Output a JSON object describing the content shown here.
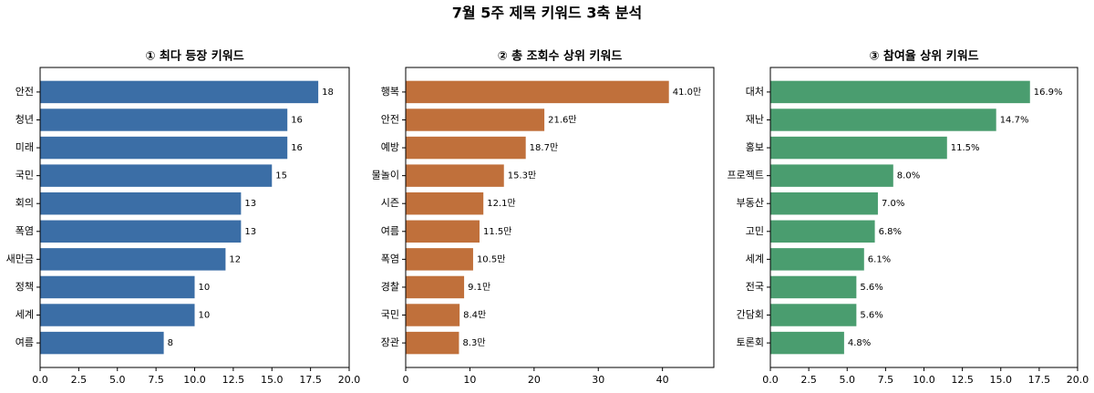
{
  "title": "7월 5주 제목 키워드 3축 분석",
  "chart_data": [
    {
      "type": "barh",
      "title": "① 최다 등장 키워드",
      "color": "#3b6ea6",
      "categories": [
        "안전",
        "청년",
        "미래",
        "국민",
        "회의",
        "폭염",
        "새만금",
        "정책",
        "세계",
        "여름"
      ],
      "values": [
        18,
        16,
        16,
        15,
        13,
        13,
        12,
        10,
        10,
        8
      ],
      "xlim": [
        0,
        20
      ],
      "xticks": [
        {
          "value": 0,
          "label": "0.0"
        },
        {
          "value": 2.5,
          "label": "2.5"
        },
        {
          "value": 5,
          "label": "5.0"
        },
        {
          "value": 7.5,
          "label": "7.5"
        },
        {
          "value": 10,
          "label": "10.0"
        },
        {
          "value": 12.5,
          "label": "12.5"
        },
        {
          "value": 15,
          "label": "15.0"
        },
        {
          "value": 17.5,
          "label": "17.5"
        },
        {
          "value": 20,
          "label": "20.0"
        }
      ]
    },
    {
      "type": "barh",
      "title": "② 총 조회수 상위 키워드",
      "color": "#c0703b",
      "categories": [
        "행복",
        "안전",
        "예방",
        "물놀이",
        "시즌",
        "여름",
        "폭염",
        "경찰",
        "국민",
        "장관"
      ],
      "values": [
        41.0,
        21.6,
        18.7,
        15.3,
        12.1,
        11.5,
        10.5,
        9.1,
        8.4,
        8.3
      ],
      "value_labels": [
        "41.0만",
        "21.6만",
        "18.7만",
        "15.3만",
        "12.1만",
        "11.5만",
        "10.5만",
        "9.1만",
        "8.4만",
        "8.3만"
      ],
      "xlim": [
        0,
        48
      ],
      "xticks": [
        0,
        10,
        20,
        30,
        40
      ]
    },
    {
      "type": "barh",
      "title": "③ 참여율 상위 키워드",
      "color": "#4a9d6f",
      "categories": [
        "대처",
        "재난",
        "홍보",
        "프로젝트",
        "부동산",
        "고민",
        "세계",
        "전국",
        "간담회",
        "토론회"
      ],
      "values": [
        16.9,
        14.7,
        11.5,
        8.0,
        7.0,
        6.8,
        6.1,
        5.6,
        5.6,
        4.8
      ],
      "value_labels": [
        "16.9%",
        "14.7%",
        "11.5%",
        "8.0%",
        "7.0%",
        "6.8%",
        "6.1%",
        "5.6%",
        "5.6%",
        "4.8%"
      ],
      "xlim": [
        0,
        20
      ],
      "xticks": [
        {
          "value": 0,
          "label": "0.0"
        },
        {
          "value": 2.5,
          "label": "2.5"
        },
        {
          "value": 5,
          "label": "5.0"
        },
        {
          "value": 7.5,
          "label": "7.5"
        },
        {
          "value": 10,
          "label": "10.0"
        },
        {
          "value": 12.5,
          "label": "12.5"
        },
        {
          "value": 15,
          "label": "15.0"
        },
        {
          "value": 17.5,
          "label": "17.5"
        },
        {
          "value": 20,
          "label": "20.0"
        }
      ]
    }
  ]
}
